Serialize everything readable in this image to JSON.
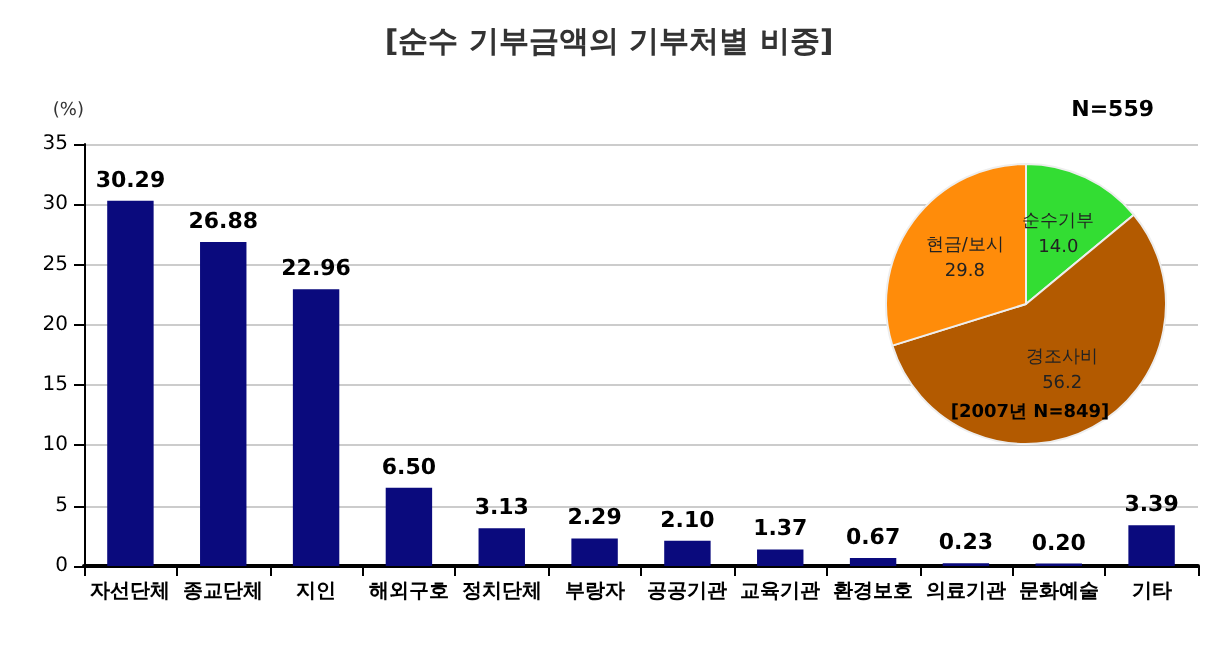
{
  "chart_data": [
    {
      "type": "bar",
      "title": "[순수 기부금액의 기부처별 비중]",
      "ylabel": "(%)",
      "categories": [
        "자선단체",
        "종교단체",
        "지인",
        "해외구호",
        "정치단체",
        "부랑자",
        "공공기관",
        "교육기관",
        "환경보호",
        "의료기관",
        "문화예술",
        "기타"
      ],
      "values": [
        30.29,
        26.88,
        22.96,
        6.5,
        3.13,
        2.29,
        2.1,
        1.37,
        0.67,
        0.23,
        0.2,
        3.39
      ],
      "value_labels": [
        "30.29",
        "26.88",
        "22.96",
        "6.50",
        "3.13",
        "2.29",
        "2.10",
        "1.37",
        "0.67",
        "0.23",
        "0.20",
        "3.39"
      ],
      "color": "#0a0a7d",
      "ylim": [
        0,
        35
      ],
      "yticks": [
        0,
        5,
        10,
        15,
        20,
        25,
        30,
        35
      ],
      "grid": "y",
      "legend": false
    },
    {
      "type": "pie",
      "title": "N=559",
      "annotations": [
        "[2007년 N=849]"
      ],
      "categories": [
        "순수기부",
        "경조사비",
        "현금/보시"
      ],
      "values": [
        14.0,
        56.2,
        29.8
      ],
      "value_labels": [
        "14.0",
        "56.2",
        "29.8"
      ],
      "colors": [
        "#33dd33",
        "#b35a00",
        "#ff8c0a"
      ],
      "legend": false
    }
  ]
}
